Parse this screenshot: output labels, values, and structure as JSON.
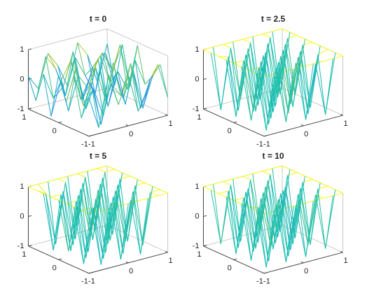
{
  "chart_data": [
    {
      "type": "mesh3d",
      "title": "t = 0",
      "x": [
        -1,
        -0.75,
        -0.5,
        -0.25,
        0,
        0.25,
        0.5,
        0.75,
        1
      ],
      "y": [
        -1,
        -0.75,
        -0.5,
        -0.25,
        0,
        0.25,
        0.5,
        0.75,
        1
      ],
      "z": [
        [
          0.3,
          -0.8,
          0.9,
          -0.2,
          0.7,
          -0.6,
          0.1,
          0.8,
          -0.4
        ],
        [
          -0.5,
          0.6,
          -0.9,
          0.4,
          -0.1,
          0.9,
          -0.7,
          0.2,
          0.6
        ],
        [
          0.8,
          -0.3,
          0.2,
          -0.8,
          0.9,
          -0.4,
          0.5,
          -0.9,
          0.1
        ],
        [
          -0.2,
          0.9,
          -0.6,
          0.7,
          -0.5,
          0.3,
          -0.8,
          0.6,
          -0.3
        ],
        [
          0.6,
          -0.7,
          0.4,
          -0.1,
          0.8,
          -0.9,
          0.2,
          -0.5,
          0.9
        ],
        [
          -0.9,
          0.2,
          0.8,
          -0.6,
          0.1,
          0.7,
          -0.3,
          0.9,
          -0.6
        ],
        [
          0.4,
          -0.5,
          -0.2,
          0.9,
          -0.8,
          0.2,
          0.6,
          -0.1,
          0.7
        ],
        [
          -0.6,
          0.8,
          0.3,
          -0.7,
          0.5,
          -0.2,
          -0.9,
          0.4,
          -0.8
        ],
        [
          0.1,
          -0.4,
          0.7,
          0.2,
          -0.6,
          0.8,
          0.3,
          -0.7,
          0.5
        ]
      ],
      "xlim": [
        -1,
        1
      ],
      "ylim": [
        -1,
        1
      ],
      "zlim": [
        -1,
        1
      ],
      "xticks": [
        -1,
        0,
        1
      ],
      "yticks": [
        -1,
        0,
        1
      ],
      "zticks": [
        -1,
        0,
        1
      ],
      "colormap": [
        "#3e26a8",
        "#2e86f5",
        "#1bbfb0",
        "#a6c63b",
        "#f9fb15"
      ]
    },
    {
      "type": "mesh3d",
      "title": "t = 2.5",
      "x": [
        -1,
        -0.75,
        -0.5,
        -0.25,
        0,
        0.25,
        0.5,
        0.75,
        1
      ],
      "y": [
        -1,
        -0.75,
        -0.5,
        -0.25,
        0,
        0.25,
        0.5,
        0.75,
        1
      ],
      "z": [
        [
          1,
          1,
          1,
          1,
          1,
          1,
          1,
          1,
          1
        ],
        [
          1,
          -1,
          1,
          -0.9,
          1,
          -1,
          0.8,
          -1,
          1
        ],
        [
          1,
          1,
          -1,
          1,
          -0.8,
          1,
          -1,
          0.9,
          1
        ],
        [
          1,
          -0.9,
          1,
          -1,
          1,
          -0.7,
          1,
          -1,
          1
        ],
        [
          1,
          1,
          -0.8,
          1,
          -1,
          1,
          -1,
          1,
          1
        ],
        [
          1,
          -1,
          1,
          -1,
          0.9,
          -1,
          1,
          -0.8,
          1
        ],
        [
          1,
          0.9,
          -1,
          1,
          -1,
          1,
          -0.9,
          1,
          1
        ],
        [
          1,
          -1,
          1,
          -0.8,
          1,
          -1,
          1,
          -1,
          1
        ],
        [
          1,
          1,
          1,
          1,
          1,
          1,
          1,
          1,
          1
        ]
      ],
      "xlim": [
        -1,
        1
      ],
      "ylim": [
        -1,
        1
      ],
      "zlim": [
        -1,
        1
      ],
      "xticks": [
        -1,
        0,
        1
      ],
      "yticks": [
        -1,
        0,
        1
      ],
      "zticks": [
        -1,
        0,
        1
      ],
      "colormap": [
        "#3e26a8",
        "#2e86f5",
        "#1bbfb0",
        "#a6c63b",
        "#f9fb15"
      ]
    },
    {
      "type": "mesh3d",
      "title": "t = 5",
      "x": [
        -1,
        -0.75,
        -0.5,
        -0.25,
        0,
        0.25,
        0.5,
        0.75,
        1
      ],
      "y": [
        -1,
        -0.75,
        -0.5,
        -0.25,
        0,
        0.25,
        0.5,
        0.75,
        1
      ],
      "z": [
        [
          1,
          1,
          1,
          1,
          1,
          1,
          1,
          1,
          1
        ],
        [
          1,
          1,
          -1,
          1,
          -1,
          0.9,
          -1,
          1,
          1
        ],
        [
          1,
          -1,
          0.8,
          -1,
          1,
          -1,
          1,
          -0.9,
          1
        ],
        [
          1,
          1,
          -1,
          0.9,
          -1,
          1,
          -0.8,
          1,
          1
        ],
        [
          1,
          -0.8,
          1,
          -1,
          1,
          -0.9,
          1,
          -1,
          1
        ],
        [
          1,
          1,
          -1,
          1,
          -0.7,
          1,
          -1,
          1,
          1
        ],
        [
          1,
          -1,
          0.9,
          -1,
          1,
          -1,
          1,
          -1,
          1
        ],
        [
          1,
          0.8,
          -1,
          1,
          -1,
          1,
          -0.9,
          1,
          1
        ],
        [
          1,
          1,
          1,
          1,
          1,
          1,
          1,
          1,
          1
        ]
      ],
      "xlim": [
        -1,
        1
      ],
      "ylim": [
        -1,
        1
      ],
      "zlim": [
        -1,
        1
      ],
      "xticks": [
        -1,
        0,
        1
      ],
      "yticks": [
        -1,
        0,
        1
      ],
      "zticks": [
        -1,
        0,
        1
      ],
      "colormap": [
        "#3e26a8",
        "#2e86f5",
        "#1bbfb0",
        "#a6c63b",
        "#f9fb15"
      ]
    },
    {
      "type": "mesh3d",
      "title": "t = 10",
      "x": [
        -1,
        -0.75,
        -0.5,
        -0.25,
        0,
        0.25,
        0.5,
        0.75,
        1
      ],
      "y": [
        -1,
        -0.75,
        -0.5,
        -0.25,
        0,
        0.25,
        0.5,
        0.75,
        1
      ],
      "z": [
        [
          1,
          1,
          1,
          1,
          1,
          1,
          1,
          1,
          1
        ],
        [
          1,
          -1,
          1,
          -1,
          0.8,
          -1,
          1,
          -0.9,
          1
        ],
        [
          1,
          0.9,
          -1,
          1,
          -1,
          1,
          -0.8,
          1,
          1
        ],
        [
          1,
          -1,
          1,
          -0.7,
          1,
          -1,
          1,
          -1,
          1
        ],
        [
          1,
          1,
          -0.9,
          1,
          -1,
          0.9,
          -1,
          1,
          1
        ],
        [
          1,
          -1,
          1,
          -1,
          1,
          -1,
          0.8,
          -1,
          1
        ],
        [
          1,
          1,
          -1,
          0.9,
          -1,
          1,
          -1,
          1,
          1
        ],
        [
          1,
          -0.9,
          1,
          -1,
          1,
          -0.8,
          1,
          -1,
          1
        ],
        [
          1,
          1,
          1,
          1,
          1,
          1,
          1,
          1,
          1
        ]
      ],
      "xlim": [
        -1,
        1
      ],
      "ylim": [
        -1,
        1
      ],
      "zlim": [
        -1,
        1
      ],
      "xticks": [
        -1,
        0,
        1
      ],
      "yticks": [
        -1,
        0,
        1
      ],
      "zticks": [
        -1,
        0,
        1
      ],
      "colormap": [
        "#3e26a8",
        "#2e86f5",
        "#1bbfb0",
        "#a6c63b",
        "#f9fb15"
      ]
    }
  ]
}
